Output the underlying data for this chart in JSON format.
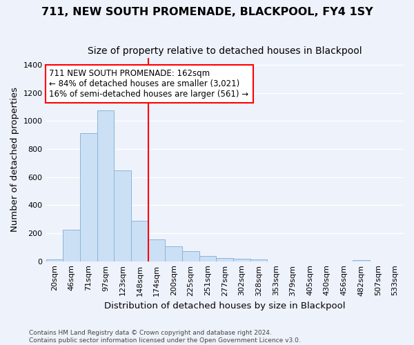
{
  "title": "711, NEW SOUTH PROMENADE, BLACKPOOL, FY4 1SY",
  "subtitle": "Size of property relative to detached houses in Blackpool",
  "xlabel": "Distribution of detached houses by size in Blackpool",
  "ylabel": "Number of detached properties",
  "footer_line1": "Contains HM Land Registry data © Crown copyright and database right 2024.",
  "footer_line2": "Contains public sector information licensed under the Open Government Licence v3.0.",
  "bar_labels": [
    "20sqm",
    "46sqm",
    "71sqm",
    "97sqm",
    "123sqm",
    "148sqm",
    "174sqm",
    "200sqm",
    "225sqm",
    "251sqm",
    "277sqm",
    "302sqm",
    "328sqm",
    "353sqm",
    "379sqm",
    "405sqm",
    "430sqm",
    "456sqm",
    "482sqm",
    "507sqm",
    "533sqm"
  ],
  "bar_values": [
    15,
    225,
    915,
    1075,
    650,
    290,
    155,
    105,
    70,
    40,
    25,
    20,
    12,
    0,
    0,
    0,
    0,
    0,
    10,
    0,
    0
  ],
  "bar_color": "#cce0f5",
  "bar_edge_color": "#8ab4d8",
  "vline_x": 5.5,
  "vline_color": "red",
  "annotation_text": "711 NEW SOUTH PROMENADE: 162sqm\n← 84% of detached houses are smaller (3,021)\n16% of semi-detached houses are larger (561) →",
  "annotation_box_color": "white",
  "annotation_box_edge": "red",
  "ylim": [
    0,
    1450
  ],
  "background_color": "#eef2fb",
  "grid_color": "white",
  "title_fontsize": 11.5,
  "subtitle_fontsize": 10,
  "axis_label_fontsize": 9.5,
  "tick_fontsize": 8,
  "annotation_fontsize": 8.5,
  "footer_fontsize": 6.5
}
